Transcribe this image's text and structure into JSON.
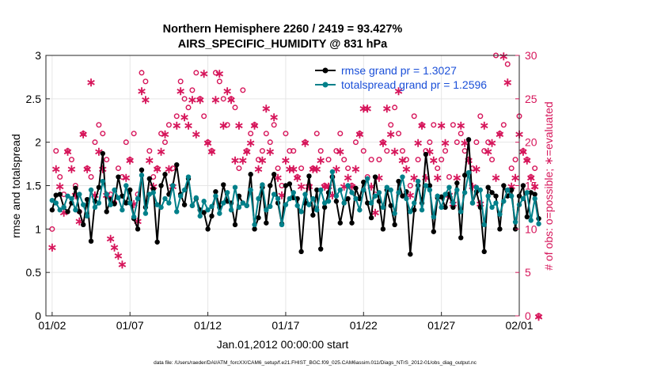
{
  "chart_data": {
    "type": "line",
    "title_line1": "Northern Hemisphere 2260 / 2419 = 93.427%",
    "title_line2": "AIRS_SPECIFIC_HUMIDITY @ 831 hPa",
    "xlabel": "Jan.01,2012 00:00:00 start",
    "ylabel_left": "rmse and totalspread",
    "ylabel_right": "# of obs: o=possible; ∗=evaluated",
    "footer": "data file: /Users/raeder/DAI/ATM_forcXX/CAM6_setup/f.e21.FHIST_BGC.f09_025.CAM6assim.011/Diags_NTrS_2012-01/obs_diag_output.nc",
    "ylim_left": [
      0,
      3
    ],
    "ylim_right": [
      0,
      30
    ],
    "xlim_days": [
      0.6,
      31.0
    ],
    "left_ticks": [
      "0",
      "0.5",
      "1",
      "1.5",
      "2",
      "2.5",
      "3"
    ],
    "left_tick_values": [
      0,
      0.5,
      1,
      1.5,
      2,
      2.5,
      3
    ],
    "right_ticks": [
      "0",
      "5",
      "10",
      "15",
      "20",
      "25",
      "30"
    ],
    "right_tick_values": [
      0,
      5,
      10,
      15,
      20,
      25,
      30
    ],
    "x_ticks": [
      "01/02",
      "01/07",
      "01/12",
      "01/17",
      "01/22",
      "01/27",
      "02/01"
    ],
    "x_tick_days": [
      1,
      6,
      11,
      16,
      21,
      26,
      31
    ],
    "legend": [
      {
        "label": "rmse grand pr = 1.3027",
        "color": "#000000"
      },
      {
        "label": "totalspread grand pr = 1.2596",
        "color": "#00808a"
      }
    ],
    "colors": {
      "rmse": "#000000",
      "spread": "#00808a",
      "obs": "#d6155a",
      "label_blue": "#1a4fd8"
    },
    "series": [
      {
        "name": "rmse",
        "values": [
          1.22,
          1.39,
          1.4,
          1.25,
          1.2,
          1.3,
          1.47,
          1.2,
          1.05,
          1.34,
          0.86,
          1.32,
          1.48,
          1.87,
          1.2,
          1.34,
          1.29,
          1.6,
          1.38,
          1.3,
          1.45,
          1.12,
          1.0,
          1.68,
          1.25,
          1.58,
          1.46,
          0.85,
          1.5,
          1.63,
          1.4,
          1.5,
          1.74,
          1.4,
          1.28,
          1.58,
          1.27,
          1.35,
          1.22,
          1.19,
          1.0,
          1.15,
          1.43,
          1.25,
          1.51,
          1.32,
          1.3,
          1.05,
          1.38,
          1.3,
          1.27,
          1.63,
          1.0,
          1.13,
          1.48,
          1.07,
          1.5,
          1.63,
          1.3,
          1.06,
          1.5,
          1.52,
          1.36,
          1.35,
          0.74,
          1.3,
          1.61,
          1.16,
          1.45,
          0.77,
          1.25,
          1.42,
          1.6,
          1.32,
          1.07,
          1.3,
          1.35,
          1.07,
          1.47,
          1.35,
          1.54,
          1.3,
          1.13,
          1.6,
          1.32,
          1.0,
          1.45,
          1.27,
          1.05,
          1.55,
          1.38,
          1.43,
          0.71,
          1.22,
          1.5,
          1.3,
          1.86,
          1.5,
          0.97,
          1.36,
          1.37,
          1.25,
          1.4,
          1.25,
          1.53,
          0.9,
          1.62,
          2.03,
          1.3,
          1.43,
          1.25,
          0.74,
          1.48,
          1.42,
          1.38,
          1.0,
          1.5,
          1.38,
          1.45,
          1.0,
          1.38,
          1.5,
          1.14,
          1.42,
          1.4,
          1.12
        ]
      },
      {
        "name": "totalspread",
        "values": [
          1.33,
          1.3,
          1.22,
          1.25,
          1.38,
          1.35,
          1.22,
          1.4,
          1.28,
          1.15,
          1.45,
          1.25,
          1.3,
          1.55,
          1.4,
          1.28,
          1.45,
          1.36,
          1.22,
          1.5,
          1.3,
          1.14,
          1.35,
          1.62,
          1.18,
          1.4,
          1.42,
          1.28,
          1.25,
          1.35,
          1.3,
          1.5,
          1.2,
          1.38,
          1.45,
          1.6,
          1.27,
          1.36,
          1.15,
          1.32,
          1.22,
          1.26,
          1.38,
          1.18,
          1.3,
          1.42,
          1.22,
          1.48,
          1.25,
          1.3,
          1.27,
          1.45,
          1.05,
          1.35,
          1.51,
          1.22,
          1.26,
          1.4,
          1.35,
          1.05,
          1.28,
          1.35,
          1.42,
          1.27,
          1.2,
          1.4,
          1.28,
          1.35,
          1.22,
          1.45,
          1.3,
          1.32,
          1.66,
          1.38,
          1.45,
          1.3,
          1.5,
          1.42,
          1.35,
          1.22,
          1.45,
          1.58,
          1.3,
          1.38,
          1.42,
          1.25,
          1.48,
          1.45,
          1.18,
          1.42,
          1.6,
          1.35,
          1.2,
          1.3,
          1.55,
          1.22,
          1.5,
          1.45,
          1.14,
          1.38,
          1.25,
          1.4,
          1.48,
          1.3,
          1.45,
          1.2,
          1.42,
          1.65,
          1.3,
          1.48,
          1.45,
          1.05,
          1.38,
          1.25,
          1.3,
          1.17,
          1.32,
          1.45,
          1.38,
          1.08,
          1.28,
          1.35,
          1.42,
          1.1,
          1.35,
          1.06
        ]
      },
      {
        "name": "obs_possible",
        "values": [
          10,
          19,
          16,
          14,
          19,
          18,
          15,
          12,
          21,
          17,
          16,
          20,
          22,
          21,
          18,
          14,
          13,
          17,
          16,
          20,
          18,
          21,
          14,
          28,
          27,
          19,
          16,
          17,
          21,
          20,
          22,
          17,
          23,
          27,
          25,
          24,
          26,
          28,
          25,
          23,
          20,
          19,
          28,
          27,
          25,
          22,
          25,
          24,
          17,
          26,
          19,
          21,
          22,
          18,
          19,
          21,
          20,
          22,
          17,
          15,
          21,
          19,
          19,
          16,
          17,
          20,
          15,
          17,
          21,
          19,
          15,
          18,
          16,
          19,
          21,
          18,
          17,
          15,
          20,
          21,
          19,
          16,
          18,
          14,
          18,
          20,
          19,
          22,
          24,
          21,
          19,
          18,
          15,
          23,
          18,
          22,
          19,
          20,
          22,
          17,
          18,
          19,
          16,
          22,
          20,
          21,
          19,
          18,
          17,
          20,
          23,
          19,
          20,
          18,
          30,
          21,
          22,
          29,
          17,
          18,
          23,
          19,
          18,
          16,
          17,
          0
        ]
      },
      {
        "name": "obs_evaluated",
        "values": [
          8,
          17,
          15,
          12,
          19,
          17,
          14,
          11,
          21,
          17,
          27,
          14,
          19,
          17,
          14,
          9,
          8,
          7,
          6,
          16,
          18,
          13,
          11,
          26,
          25,
          18,
          15,
          17,
          19,
          21,
          17,
          15,
          22,
          26,
          23,
          22,
          25,
          21,
          25,
          28,
          20,
          19,
          25,
          28,
          22,
          26,
          25,
          18,
          22,
          18,
          19,
          20,
          22,
          17,
          18,
          24,
          19,
          23,
          16,
          14,
          18,
          17,
          17,
          16,
          15,
          20,
          15,
          17,
          17,
          18,
          15,
          15,
          14,
          17,
          19,
          15,
          16,
          15,
          17,
          21,
          24,
          24,
          15,
          12,
          16,
          20,
          24,
          21,
          19,
          26,
          18,
          17,
          14,
          16,
          20,
          22,
          16,
          19,
          18,
          16,
          22,
          20,
          14,
          13,
          16,
          22,
          20,
          18,
          15,
          17,
          13,
          22,
          19,
          20,
          16,
          21,
          30,
          27,
          15,
          16,
          21,
          19,
          18,
          16,
          15,
          0
        ]
      }
    ]
  }
}
